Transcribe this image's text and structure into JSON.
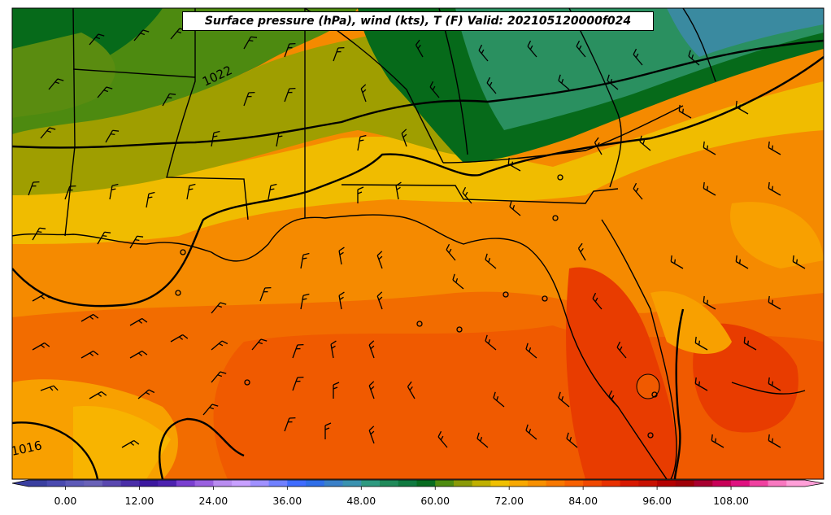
{
  "title": "Surface pressure (hPa), wind (kts), T (F) Valid: 202105120000f024",
  "isobar_labels": [
    "1022",
    "1016"
  ],
  "colorbar": {
    "ticks": [
      "0.00",
      "12.00",
      "24.00",
      "36.00",
      "48.00",
      "60.00",
      "72.00",
      "84.00",
      "96.00",
      "108.00"
    ],
    "range": [
      -6,
      120
    ],
    "colors": [
      "#3a3fa0",
      "#4a4ab0",
      "#5d5ab8",
      "#6a62b8",
      "#5a48b0",
      "#4a2ea8",
      "#3c18a0",
      "#4d22b0",
      "#7a3fd0",
      "#9a60e0",
      "#b98cf0",
      "#c8a0ff",
      "#a090ff",
      "#7080ff",
      "#3f6cff",
      "#2f6ee8",
      "#3a80c8",
      "#3a92b0",
      "#2e9a80",
      "#208a5a",
      "#107a40",
      "#086c20",
      "#4e8c10",
      "#8a9a08",
      "#c0b000",
      "#f0c000",
      "#f8a800",
      "#f89000",
      "#f87800",
      "#f86000",
      "#f04800",
      "#e83000",
      "#d81800",
      "#c81000",
      "#b40000",
      "#a00008",
      "#a80030",
      "#c80058",
      "#e01080",
      "#f040a0",
      "#f878c0",
      "#ff9fd8"
    ]
  },
  "colors": {
    "water_warm": "#f58a00",
    "water_hot": "#f05a00",
    "land_cool": "#066a1a",
    "land_mild": "#9f9e00",
    "land_warm": "#f0bc00",
    "teal": "#2a9060"
  }
}
